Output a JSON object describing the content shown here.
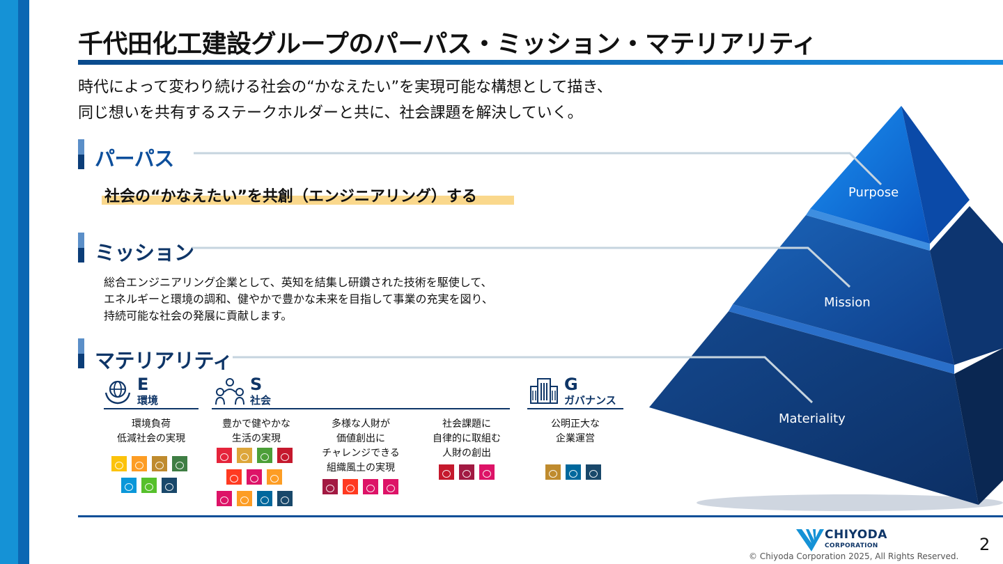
{
  "title": "千代田化工建設グループのパーパス・ミッション・マテリアリティ",
  "intro": [
    "時代によって変わり続ける社会の“かなえたい”を実現可能な構想として描き、",
    "同じ想いを共有するステークホルダーと共に、社会課題を解決していく。"
  ],
  "purpose": {
    "heading": "パーパス",
    "statement": "社会の“かなえたい”を共創（エンジニアリング）する"
  },
  "mission": {
    "heading": "ミッション",
    "lines": [
      "総合エンジニアリング企業として、英知を結集し研鑽された技術を駆使して、",
      "エネルギーと環境の調和、健やかで豊かな未来を目指して事業の充実を図り、",
      "持続可能な社会の発展に貢献します。"
    ]
  },
  "materiality": {
    "heading": "マテリアリティ",
    "categories": {
      "e": {
        "letter": "E",
        "name": "環境",
        "icon": "globe-hands-icon"
      },
      "s": {
        "letter": "S",
        "name": "社会",
        "icon": "people-group-icon"
      },
      "g": {
        "letter": "G",
        "name": "ガバナンス",
        "icon": "building-icon"
      }
    },
    "items": [
      {
        "lines": [
          "環境負荷",
          "低減社会の実現"
        ]
      },
      {
        "lines": [
          "豊かで健やかな",
          "生活の実現"
        ]
      },
      {
        "lines": [
          "多様な人財が",
          "価値創出に",
          "チャレンジできる",
          "組織風土の実現"
        ]
      },
      {
        "lines": [
          "社会課題に",
          "自律的に取組む",
          "人財の創出"
        ]
      },
      {
        "lines": [
          "公明正大な",
          "企業運営"
        ]
      }
    ]
  },
  "pyramid": {
    "labels": [
      "Purpose",
      "Mission",
      "Materiality"
    ]
  },
  "footer": {
    "logo_top": "CHIYODA",
    "logo_bottom": "CORPORATION",
    "copyright": "© Chiyoda Corporation 2025, All Rights Reserved.",
    "page_number": "2"
  },
  "colors": {
    "accent_blue": "#0d4f9c",
    "navy": "#0e3567",
    "highlight": "#fad88c",
    "sdg_palette": [
      "#E5243B",
      "#DDA63A",
      "#4C9F38",
      "#C5192D",
      "#FF3A21",
      "#26BDE2",
      "#FCC30B",
      "#A21942",
      "#FD6925",
      "#DD1367",
      "#FD9D24",
      "#BF8B2E",
      "#3F7E44",
      "#0A97D9",
      "#56C02B",
      "#00689D",
      "#19486A"
    ]
  }
}
